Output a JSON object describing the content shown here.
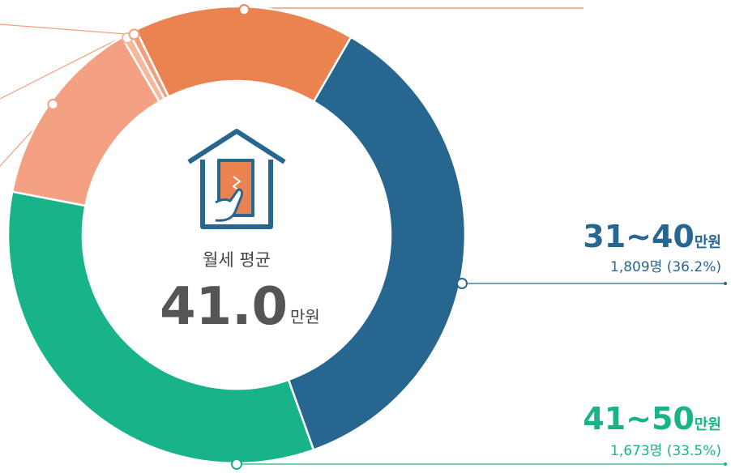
{
  "chart_data": {
    "type": "pie",
    "categories": [
      "31~40",
      "41~50",
      null,
      null,
      null,
      null
    ],
    "unit": "만원",
    "series": [
      {
        "values": [
          36.2,
          33.5,
          13.6,
          0.6,
          0.5,
          15.6
        ],
        "value_labels": [
          "1,809명 (36.2%)",
          "1,673명 (33.5%)",
          null,
          null,
          null,
          null
        ],
        "colors": [
          "#26668f",
          "#19b38a",
          "#f4a083",
          "#f6b89a",
          "#f0a080",
          "#eb8350"
        ]
      }
    ],
    "center_label": "월세 평균",
    "average": {
      "value": 41,
      "label": "41.0"
    }
  }
}
